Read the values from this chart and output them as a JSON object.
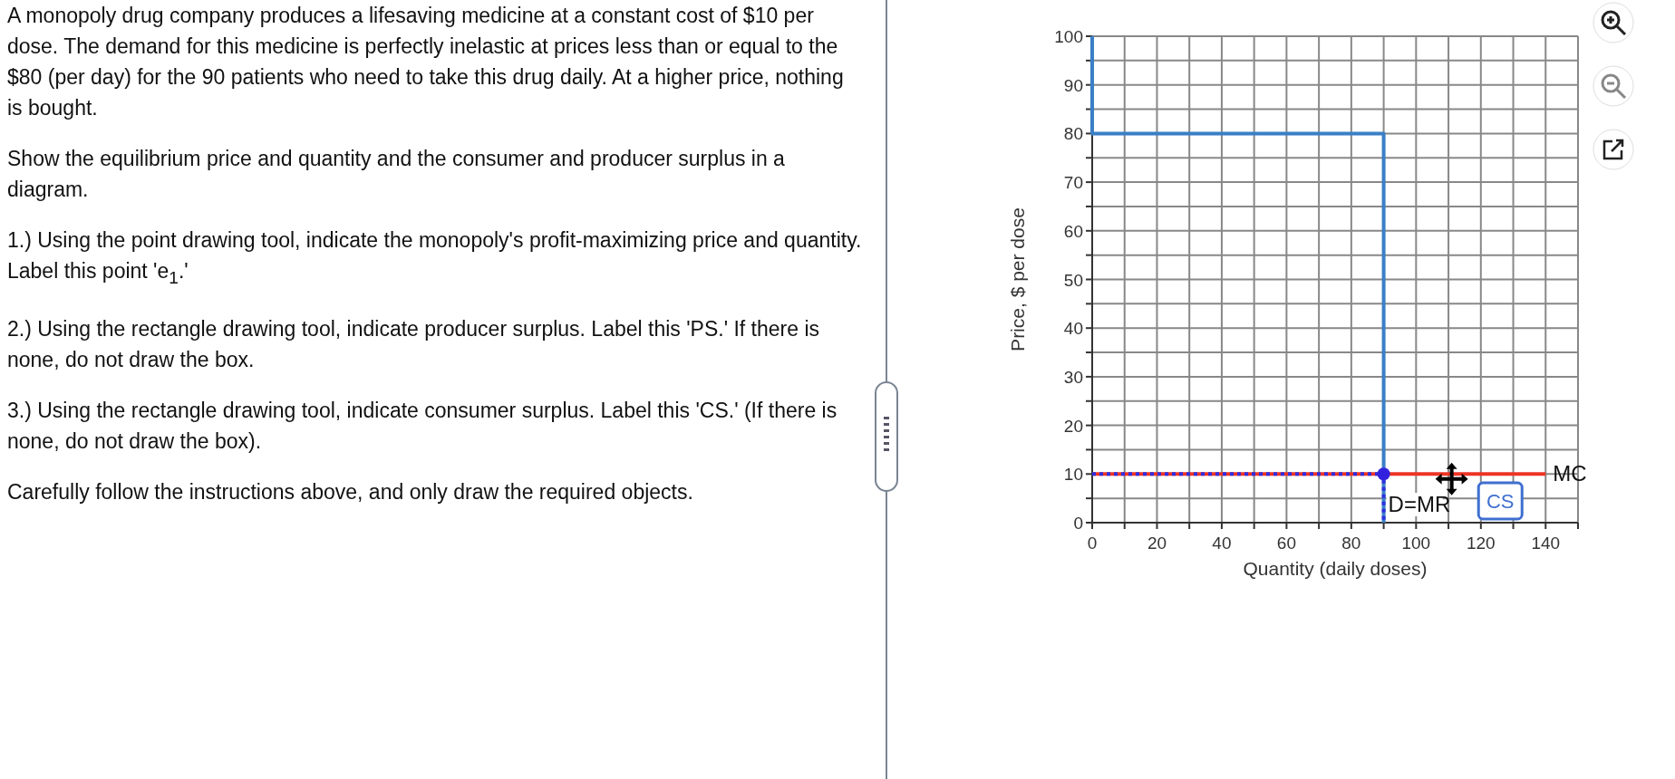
{
  "chart_data": {
    "type": "line",
    "xlabel": "Quantity (daily doses)",
    "ylabel": "Price, $ per dose",
    "xlim": [
      0,
      150
    ],
    "ylim": [
      0,
      100
    ],
    "xticks": [
      0,
      {
        "value": 10,
        "label": null
      },
      20,
      {
        "value": 30,
        "label": null
      },
      40,
      {
        "value": 50,
        "label": null
      },
      60,
      {
        "value": 70,
        "label": null
      },
      80,
      {
        "value": 90,
        "label": null
      },
      100,
      {
        "value": 110,
        "label": null
      },
      120,
      {
        "value": 130,
        "label": null
      },
      140,
      {
        "value": 150,
        "label": null
      }
    ],
    "yticks": [
      0,
      {
        "value": 5,
        "label": null
      },
      10,
      {
        "value": 15,
        "label": null
      },
      20,
      {
        "value": 25,
        "label": null
      },
      30,
      {
        "value": 35,
        "label": null
      },
      40,
      {
        "value": 45,
        "label": null
      },
      50,
      {
        "value": 55,
        "label": null
      },
      60,
      {
        "value": 65,
        "label": null
      },
      70,
      {
        "value": 75,
        "label": null
      },
      80,
      {
        "value": 85,
        "label": null
      },
      90,
      {
        "value": 95,
        "label": null
      },
      100
    ],
    "grid": true,
    "series": [
      {
        "name": "D=MR",
        "color": "#3a7fc6",
        "x": [
          0,
          0,
          90,
          90
        ],
        "values": [
          100,
          80,
          80,
          0
        ]
      },
      {
        "name": "MC",
        "color": "#ee3424",
        "x": [
          0,
          140
        ],
        "values": [
          10,
          10
        ]
      },
      {
        "color": "#2f2fe0",
        "type": "line",
        "line_style": "dotted",
        "x": [
          0,
          90,
          90
        ],
        "values": [
          10,
          10,
          0
        ]
      },
      {
        "color": "#3322dd",
        "type": "scatter",
        "marker": "circle",
        "x": [
          90
        ],
        "values": [
          10
        ]
      }
    ],
    "annotations": [
      "A monopoly drug company produces a lifesaving medicine at a constant cost of $10 per dose.  The demand for this medicine is perfectly inelastic at prices less than or equal to the $80 (per day) for the 90 patients who need to take this drug daily.  At a higher price, nothing is bought.",
      "Show the equilibrium price and quantity and the consumer and producer surplus in a diagram.",
      "1.) Using the point drawing tool, indicate the monopoly's profit-maximizing price and quantity.  Label this point 'e$_{1}$.'",
      "2.) Using the rectangle drawing tool, indicate producer surplus.  Label this 'PS.'  If there is none, do not draw the box.",
      "3.) Using the rectangle drawing tool, indicate consumer surplus.  Label this 'CS.'  (If there is none, do not draw the box).",
      "Carefully follow the instructions above, and only draw the required objects.",
      {
        "text": "CS"
      }
    ]
  }
}
